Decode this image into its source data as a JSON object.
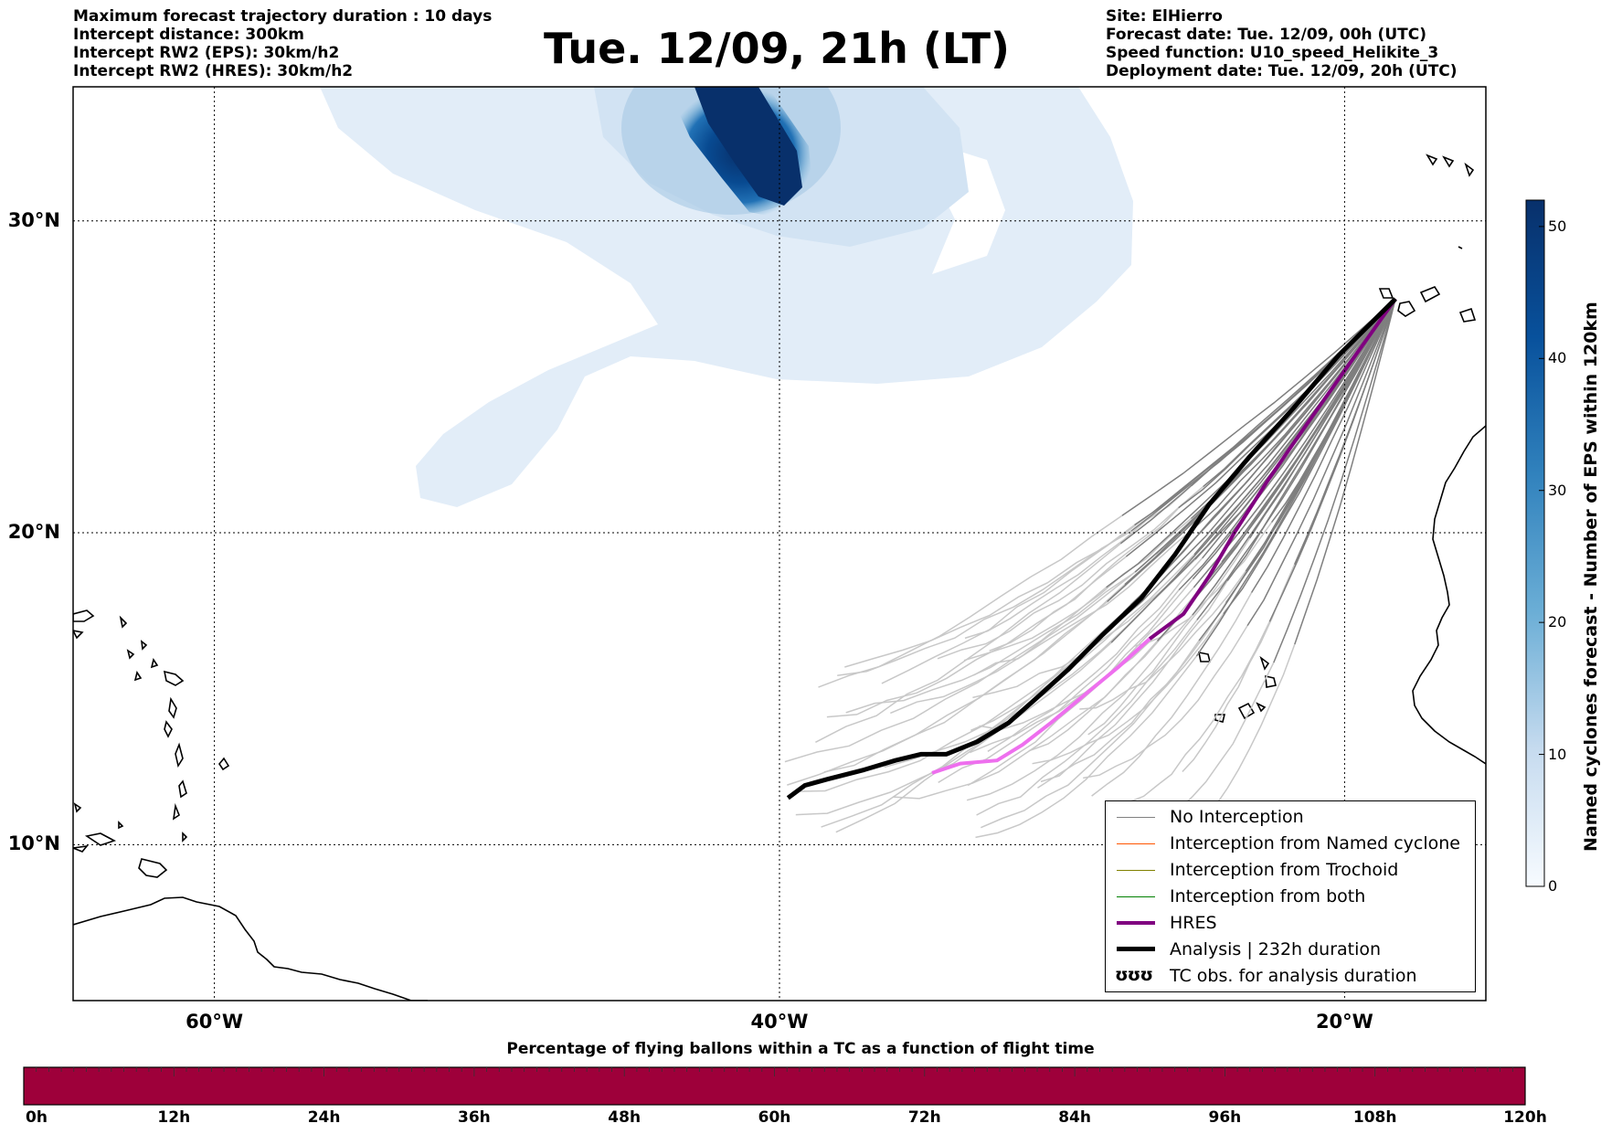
{
  "info_left": [
    "Maximum forecast trajectory duration : 10 days",
    "Intercept distance: 300km",
    "Intercept RW2 (EPS):  30km/h2",
    "Intercept RW2 (HRES): 30km/h2"
  ],
  "info_right": [
    "Site: ElHierro",
    "Forecast date: Tue. 12/09, 00h (UTC)",
    "Speed function: U10_speed_Helikite_3",
    "Deployment date: Tue. 12/09, 20h (UTC)"
  ],
  "title": "Tue. 12/09, 21h (LT)",
  "map": {
    "lon_range": [
      -65,
      -15
    ],
    "lat_range": [
      5,
      34.3
    ],
    "lat_labels": [
      {
        "lat": 30,
        "label": "30°N"
      },
      {
        "lat": 20,
        "label": "20°N"
      },
      {
        "lat": 10,
        "label": "10°N"
      }
    ],
    "lon_labels": [
      {
        "lon": -60,
        "label": "60°W"
      },
      {
        "lon": -40,
        "label": "40°W"
      },
      {
        "lon": -20,
        "label": "20°W"
      }
    ]
  },
  "legend": [
    {
      "label": "No Interception",
      "color": "#808080",
      "weight": 1.5,
      "kind": "line"
    },
    {
      "label": "Interception from Named cyclone",
      "color": "#ff5500",
      "weight": 1.5,
      "kind": "line"
    },
    {
      "label": "Interception from Trochoid",
      "color": "#808000",
      "weight": 1.5,
      "kind": "line"
    },
    {
      "label": "Interception from both",
      "color": "#008000",
      "weight": 1.5,
      "kind": "line"
    },
    {
      "label": "HRES",
      "color": "#800080",
      "weight": 4,
      "kind": "line"
    },
    {
      "label": "Analysis | 232h duration",
      "color": "#000000",
      "weight": 5,
      "kind": "line"
    },
    {
      "label": "TC obs. for analysis duration",
      "glyph": "ʊʊʊ",
      "kind": "glyph"
    }
  ],
  "colorbar": {
    "title": "Named cyclones forecast - Number of EPS within 120km",
    "min": 0,
    "max": 52,
    "ticks": [
      "0",
      "10",
      "20",
      "30",
      "40",
      "50"
    ],
    "color_low": "#deebf7",
    "color_high": "#08306b"
  },
  "flight_bar": {
    "title": "Percentage of flying ballons within a TC as a function of flight time",
    "ticks": [
      "0h",
      "12h",
      "24h",
      "36h",
      "48h",
      "60h",
      "72h",
      "84h",
      "96h",
      "108h",
      "120h"
    ],
    "fill_color": "#9e003a"
  },
  "chart_data": {
    "type": "map-trajectories",
    "analysis_track": [
      [
        -39.7,
        11.5
      ],
      [
        -39.1,
        11.9
      ],
      [
        -38.3,
        12.1
      ],
      [
        -37.0,
        12.4
      ],
      [
        -35.9,
        12.7
      ],
      [
        -35.0,
        12.9
      ],
      [
        -34.1,
        12.9
      ],
      [
        -33.0,
        13.3
      ],
      [
        -31.9,
        13.9
      ],
      [
        -30.9,
        14.7
      ],
      [
        -29.8,
        15.6
      ],
      [
        -28.6,
        16.7
      ],
      [
        -27.2,
        17.9
      ],
      [
        -26.0,
        19.3
      ],
      [
        -24.8,
        20.9
      ],
      [
        -23.4,
        22.4
      ],
      [
        -21.8,
        24.0
      ],
      [
        -20.2,
        25.7
      ],
      [
        -18.2,
        27.5
      ]
    ],
    "hres_track": [
      [
        -34.6,
        12.3
      ],
      [
        -33.6,
        12.6
      ],
      [
        -32.3,
        12.7
      ],
      [
        -31.4,
        13.2
      ],
      [
        -30.4,
        13.9
      ],
      [
        -29.2,
        14.8
      ],
      [
        -28.0,
        15.7
      ],
      [
        -26.9,
        16.6
      ],
      [
        -25.7,
        17.4
      ],
      [
        -24.8,
        18.6
      ],
      [
        -23.9,
        20.0
      ],
      [
        -22.7,
        21.7
      ],
      [
        -21.4,
        23.4
      ],
      [
        -20.0,
        25.2
      ],
      [
        -18.2,
        27.5
      ]
    ],
    "eps_density_peak": {
      "lon": -40,
      "lat": 32.5,
      "value": 52
    }
  }
}
